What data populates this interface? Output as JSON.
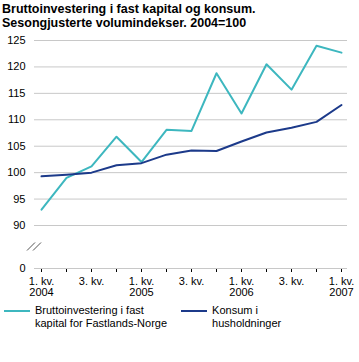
{
  "chart_data": {
    "type": "line",
    "title": "Bruttoinvestering i fast kapital og konsum.",
    "subtitle": "Sesongjusterte volumindekser. 2004=100",
    "categories": [
      "1. kv.\n2004",
      null,
      "3. kv.",
      null,
      "1. kv.\n2005",
      null,
      "3. kv.",
      null,
      "1. kv.\n2006",
      null,
      "3. kv.",
      null,
      "1. kv.\n2007"
    ],
    "series": [
      {
        "name": "Bruttoinvestering i fast\nkapital for Fastlands-Norge",
        "color": "#3db7bf",
        "values": [
          93,
          99,
          101.2,
          106.8,
          102,
          108.1,
          107.9,
          118.8,
          111.2,
          120.5,
          115.7,
          124,
          122.7
        ]
      },
      {
        "name": "Konsum i\nhusholdninger",
        "color": "#1c3a8a",
        "values": [
          99.3,
          99.6,
          100,
          101.4,
          101.8,
          103.4,
          104.2,
          104.1,
          105.9,
          107.6,
          108.5,
          109.6,
          112.8
        ]
      }
    ],
    "ylim": [
      0,
      125
    ],
    "yticks": [
      0,
      90,
      95,
      100,
      105,
      110,
      115,
      120,
      125
    ],
    "grid": true,
    "legend": "bottom"
  }
}
